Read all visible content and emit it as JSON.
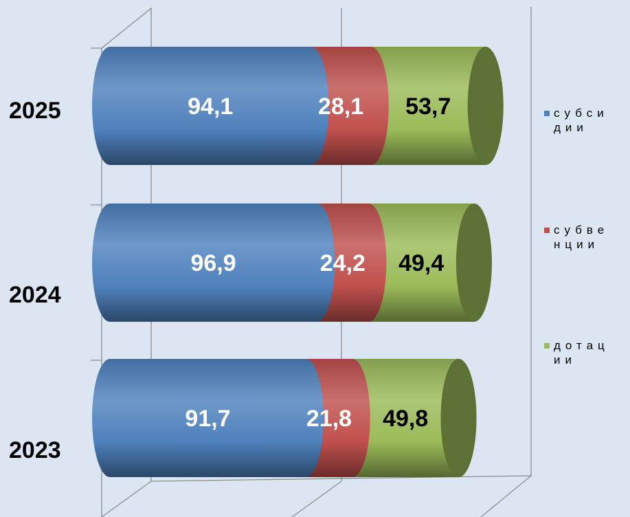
{
  "chart_data": {
    "type": "bar",
    "orientation": "horizontal",
    "stacked": true,
    "style": "3d-cylinder",
    "categories": [
      "2025",
      "2024",
      "2023"
    ],
    "series": [
      {
        "name": "субсидии",
        "legend_lines": [
          "субси",
          "дии"
        ],
        "values": [
          94.1,
          96.9,
          91.7
        ],
        "labels": [
          "94,1",
          "96,9",
          "91,7"
        ],
        "color": "#4f81bd",
        "label_color": "#ffffff"
      },
      {
        "name": "субвенции",
        "legend_lines": [
          "субве",
          "нции"
        ],
        "values": [
          28.1,
          24.2,
          21.8
        ],
        "labels": [
          "28,1",
          "24,2",
          "21,8"
        ],
        "color": "#c0504d",
        "label_color": "#ffffff"
      },
      {
        "name": "дотации",
        "legend_lines": [
          "дотац",
          "ии"
        ],
        "values": [
          53.7,
          49.4,
          49.8
        ],
        "labels": [
          "53,7",
          "49,4",
          "49,8"
        ],
        "color": "#9bbb59",
        "label_color": "#000000"
      }
    ],
    "xlim": [
      0,
      185
    ],
    "grid": true,
    "legend": "right",
    "title": "",
    "xlabel": "",
    "ylabel": ""
  }
}
